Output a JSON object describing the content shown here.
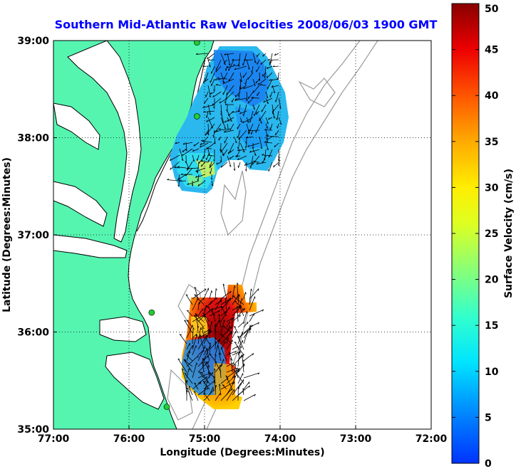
{
  "title": "Southern Mid-Atlantic Raw Velocities 2008/06/03 1900 GMT",
  "colors": {
    "title": "#0000ff",
    "land": "#55f5b0",
    "coast": "#000000",
    "bathymetry": "#9a9a9a",
    "station": "#22cc33",
    "grid": "#000000"
  },
  "map": {
    "xlabel": "Longitude (Degrees:Minutes)",
    "ylabel": "Latitude (Degrees:Minutes)",
    "x_ticks": [
      "77:00",
      "76:00",
      "75:00",
      "74:00",
      "73:00",
      "72:00"
    ],
    "y_ticks": [
      "39:00",
      "38:00",
      "37:00",
      "36:00",
      "35:00"
    ],
    "lon_range": [
      -77,
      -72
    ],
    "lat_range": [
      35,
      39
    ],
    "grid": "dotted",
    "stations": [
      {
        "lon": -75.1,
        "lat": 38.98
      },
      {
        "lon": -75.1,
        "lat": 38.22
      },
      {
        "lon": -75.7,
        "lat": 36.2
      },
      {
        "lon": -75.5,
        "lat": 35.23
      }
    ]
  },
  "colorbar": {
    "label": "Surface Velocity (cm/s)",
    "ticks": [
      "50",
      "45",
      "40",
      "35",
      "30",
      "25",
      "20",
      "15",
      "10",
      "5",
      "0"
    ],
    "range": [
      0,
      50
    ],
    "colormap": "jet"
  }
}
